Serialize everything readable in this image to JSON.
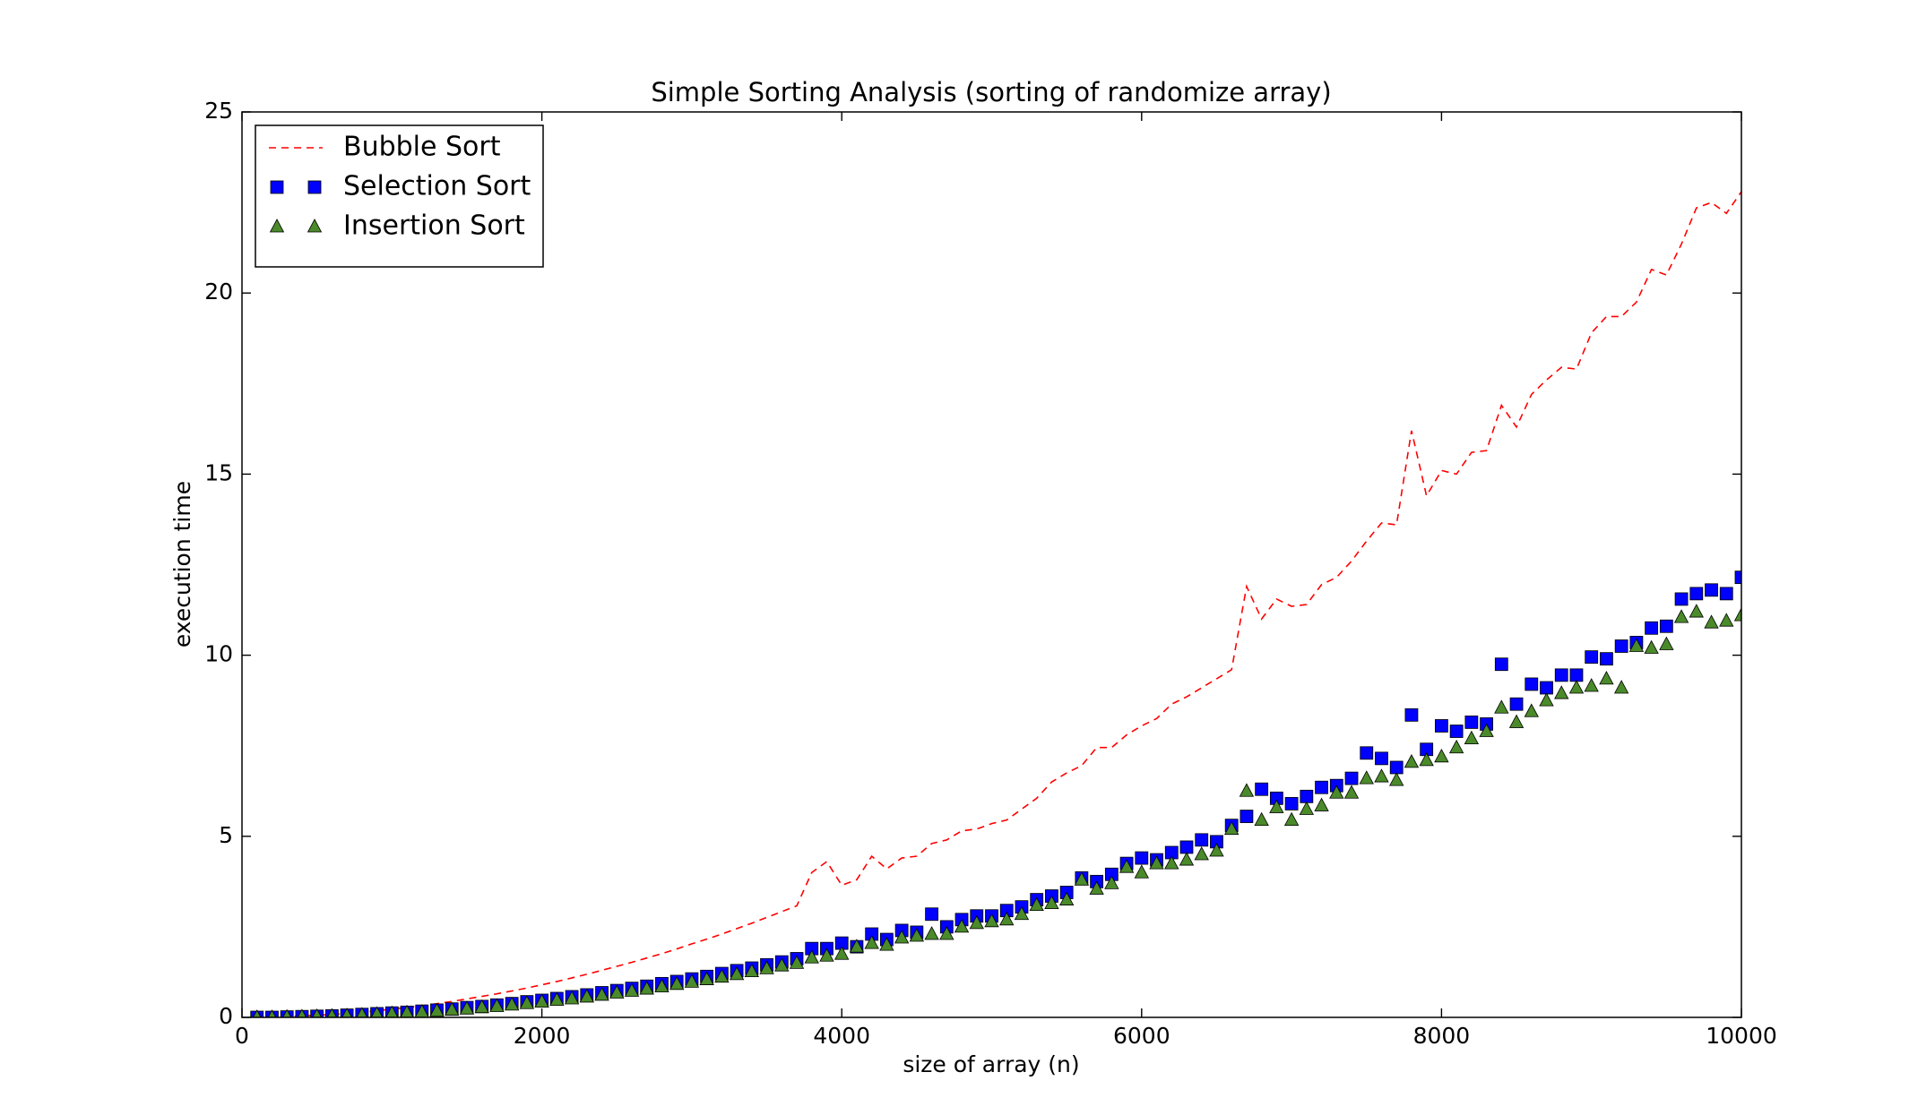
{
  "chart_data": {
    "type": "line",
    "title": "Simple Sorting Analysis (sorting of randomize array)",
    "x_label": "size of array (n)",
    "y_label": "execution time",
    "xlim": [
      0,
      10000
    ],
    "ylim": [
      0,
      25
    ],
    "xticks": [
      0,
      2000,
      4000,
      6000,
      8000,
      10000
    ],
    "yticks": [
      0,
      5,
      10,
      15,
      20,
      25
    ],
    "legend": "upper left",
    "grid": false,
    "x": [
      100,
      200,
      300,
      400,
      500,
      600,
      700,
      800,
      900,
      1000,
      1100,
      1200,
      1300,
      1400,
      1500,
      1600,
      1700,
      1800,
      1900,
      2000,
      2100,
      2200,
      2300,
      2400,
      2500,
      2600,
      2700,
      2800,
      2900,
      3000,
      3100,
      3200,
      3300,
      3400,
      3500,
      3600,
      3700,
      3800,
      3900,
      4000,
      4100,
      4200,
      4300,
      4400,
      4500,
      4600,
      4700,
      4800,
      4900,
      5000,
      5100,
      5200,
      5300,
      5400,
      5500,
      5600,
      5700,
      5800,
      5900,
      6000,
      6100,
      6200,
      6300,
      6400,
      6500,
      6600,
      6700,
      6800,
      6900,
      7000,
      7100,
      7200,
      7300,
      7400,
      7500,
      7600,
      7700,
      7800,
      7900,
      8000,
      8100,
      8200,
      8300,
      8400,
      8500,
      8600,
      8700,
      8800,
      8900,
      9000,
      9100,
      9200,
      9300,
      9400,
      9500,
      9600,
      9700,
      9800,
      9900,
      10000
    ],
    "series": [
      {
        "name": "Bubble Sort",
        "color": "#ff0000",
        "style": "dashed",
        "values": [
          0.0,
          0.01,
          0.02,
          0.04,
          0.06,
          0.08,
          0.11,
          0.14,
          0.18,
          0.23,
          0.27,
          0.32,
          0.38,
          0.44,
          0.51,
          0.58,
          0.65,
          0.73,
          0.81,
          0.9,
          0.99,
          1.09,
          1.19,
          1.3,
          1.41,
          1.52,
          1.64,
          1.76,
          1.89,
          2.03,
          2.16,
          2.3,
          2.45,
          2.6,
          2.76,
          2.92,
          3.08,
          4.0,
          4.3,
          3.65,
          3.8,
          4.45,
          4.1,
          4.4,
          4.45,
          4.8,
          4.9,
          5.15,
          5.2,
          5.35,
          5.45,
          5.75,
          6.05,
          6.5,
          6.75,
          6.95,
          7.45,
          7.45,
          7.8,
          8.05,
          8.25,
          8.65,
          8.85,
          9.1,
          9.35,
          9.6,
          11.9,
          11.0,
          11.55,
          11.35,
          11.4,
          11.95,
          12.15,
          12.6,
          13.15,
          13.65,
          13.6,
          16.2,
          14.4,
          15.1,
          15.0,
          15.6,
          15.65,
          16.9,
          16.3,
          17.2,
          17.6,
          17.95,
          17.9,
          18.9,
          19.35,
          19.35,
          19.75,
          20.65,
          20.5,
          21.35,
          22.35,
          22.5,
          22.2,
          22.8
        ]
      },
      {
        "name": "Selection Sort",
        "color": "#0000ff",
        "style": "square",
        "values": [
          0.0,
          0.0,
          0.01,
          0.02,
          0.03,
          0.04,
          0.06,
          0.08,
          0.1,
          0.12,
          0.14,
          0.17,
          0.2,
          0.23,
          0.27,
          0.3,
          0.34,
          0.38,
          0.43,
          0.47,
          0.52,
          0.57,
          0.62,
          0.68,
          0.74,
          0.8,
          0.86,
          0.93,
          0.99,
          1.06,
          1.13,
          1.21,
          1.29,
          1.36,
          1.45,
          1.53,
          1.62,
          1.9,
          1.9,
          2.05,
          1.95,
          2.3,
          2.15,
          2.4,
          2.35,
          2.85,
          2.5,
          2.7,
          2.8,
          2.8,
          2.95,
          3.05,
          3.25,
          3.35,
          3.45,
          3.85,
          3.75,
          3.95,
          4.25,
          4.4,
          4.35,
          4.55,
          4.7,
          4.9,
          4.85,
          5.3,
          5.55,
          6.3,
          6.05,
          5.9,
          6.1,
          6.35,
          6.4,
          6.6,
          7.3,
          7.15,
          6.9,
          8.35,
          7.4,
          8.05,
          7.9,
          8.15,
          8.1,
          9.75,
          8.65,
          9.2,
          9.1,
          9.45,
          9.45,
          9.95,
          9.9,
          10.25,
          10.35,
          10.75,
          10.8,
          11.55,
          11.7,
          11.8,
          11.7,
          12.15
        ]
      },
      {
        "name": "Insertion Sort",
        "color": "#4a8a2a",
        "style": "triangle",
        "values": [
          0.0,
          0.0,
          0.01,
          0.02,
          0.03,
          0.04,
          0.05,
          0.07,
          0.09,
          0.11,
          0.13,
          0.15,
          0.18,
          0.21,
          0.24,
          0.28,
          0.31,
          0.35,
          0.39,
          0.43,
          0.48,
          0.52,
          0.57,
          0.62,
          0.68,
          0.73,
          0.79,
          0.85,
          0.92,
          0.98,
          1.05,
          1.12,
          1.19,
          1.27,
          1.35,
          1.43,
          1.5,
          1.65,
          1.7,
          1.75,
          1.95,
          2.05,
          2.0,
          2.2,
          2.25,
          2.3,
          2.3,
          2.5,
          2.6,
          2.65,
          2.7,
          2.85,
          3.1,
          3.15,
          3.25,
          3.8,
          3.55,
          3.7,
          4.15,
          4.0,
          4.25,
          4.25,
          4.35,
          4.5,
          4.6,
          5.2,
          6.25,
          5.45,
          5.8,
          5.45,
          5.75,
          5.85,
          6.2,
          6.2,
          6.6,
          6.65,
          6.55,
          7.05,
          7.1,
          7.2,
          7.45,
          7.7,
          7.9,
          8.55,
          8.15,
          8.45,
          8.75,
          8.95,
          9.1,
          9.15,
          9.35,
          9.1,
          10.25,
          10.2,
          10.3,
          11.05,
          11.2,
          10.9,
          10.95,
          11.1
        ]
      }
    ]
  }
}
